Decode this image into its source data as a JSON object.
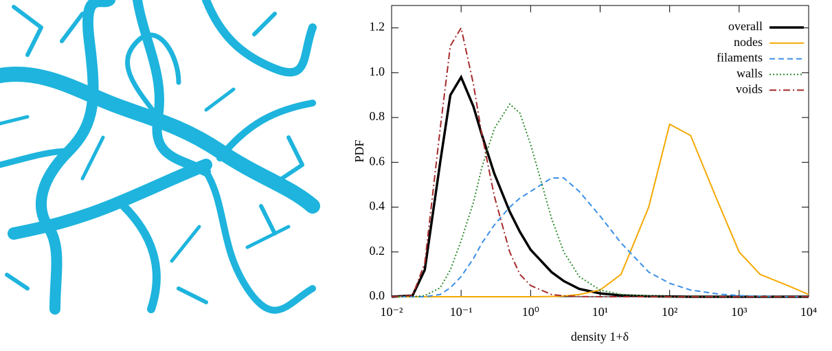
{
  "chart_data": {
    "type": "line",
    "xlabel": "density 1+δ",
    "ylabel": "PDF",
    "log_x": true,
    "legend": "upper right",
    "x": [
      0.01,
      0.02,
      0.03,
      0.05,
      0.07,
      0.1,
      0.15,
      0.2,
      0.3,
      0.5,
      0.7,
      1,
      2,
      3,
      5,
      10,
      20,
      50,
      100,
      200,
      500,
      1000,
      2000,
      5000,
      10000
    ],
    "series": [
      {
        "name": "overall",
        "color": "#000000",
        "style": "solid",
        "width": 3.5,
        "values": [
          0,
          0.005,
          0.12,
          0.6,
          0.9,
          0.98,
          0.85,
          0.72,
          0.55,
          0.38,
          0.29,
          0.21,
          0.11,
          0.07,
          0.035,
          0.015,
          0.006,
          0.002,
          0.001,
          0,
          0,
          0,
          0,
          0,
          0
        ]
      },
      {
        "name": "nodes",
        "color": "#f5a800",
        "style": "solid",
        "width": 2,
        "values": [
          0,
          0,
          0,
          0,
          0,
          0,
          0,
          0,
          0,
          0,
          0,
          0,
          0.001,
          0.003,
          0.01,
          0.03,
          0.1,
          0.4,
          0.77,
          0.72,
          0.42,
          0.2,
          0.1,
          0.05,
          0.01
        ]
      },
      {
        "name": "filaments",
        "color": "#3a8fe8",
        "style": "dashed",
        "width": 2,
        "values": [
          0,
          0,
          0,
          0.01,
          0.04,
          0.09,
          0.17,
          0.24,
          0.32,
          0.4,
          0.44,
          0.47,
          0.53,
          0.53,
          0.47,
          0.36,
          0.24,
          0.11,
          0.06,
          0.03,
          0.012,
          0.005,
          0.002,
          0,
          0
        ]
      },
      {
        "name": "walls",
        "color": "#2a8a2a",
        "style": "dotted",
        "width": 2,
        "values": [
          0,
          0,
          0.005,
          0.04,
          0.12,
          0.25,
          0.42,
          0.58,
          0.75,
          0.86,
          0.82,
          0.68,
          0.35,
          0.2,
          0.09,
          0.03,
          0.01,
          0.003,
          0.001,
          0,
          0,
          0,
          0,
          0,
          0
        ]
      },
      {
        "name": "voids",
        "color": "#a52a2a",
        "style": "dashdot",
        "width": 2,
        "values": [
          0,
          0.005,
          0.15,
          0.75,
          1.12,
          1.2,
          0.95,
          0.72,
          0.45,
          0.2,
          0.1,
          0.05,
          0.01,
          0.004,
          0.001,
          0,
          0,
          0,
          0,
          0,
          0,
          0,
          0,
          0,
          0
        ]
      }
    ],
    "xlim": [
      0.01,
      10000
    ],
    "xticks": [
      {
        "value": 0.01,
        "label": "10⁻²"
      },
      {
        "value": 0.1,
        "label": "10⁻¹"
      },
      {
        "value": 1,
        "label": "10⁰"
      },
      {
        "value": 10,
        "label": "10¹"
      },
      {
        "value": 100,
        "label": "10²"
      },
      {
        "value": 1000,
        "label": "10³"
      },
      {
        "value": 10000,
        "label": "10⁴"
      }
    ],
    "ylim": [
      0,
      1.3
    ],
    "yticks": [
      {
        "value": 0,
        "label": "0.0"
      },
      {
        "value": 0.2,
        "label": "0.2"
      },
      {
        "value": 0.4,
        "label": "0.4"
      },
      {
        "value": 0.6,
        "label": "0.6"
      },
      {
        "value": 0.8,
        "label": "0.8"
      },
      {
        "value": 1,
        "label": "1.0"
      },
      {
        "value": 1.2,
        "label": "1.2"
      }
    ]
  }
}
